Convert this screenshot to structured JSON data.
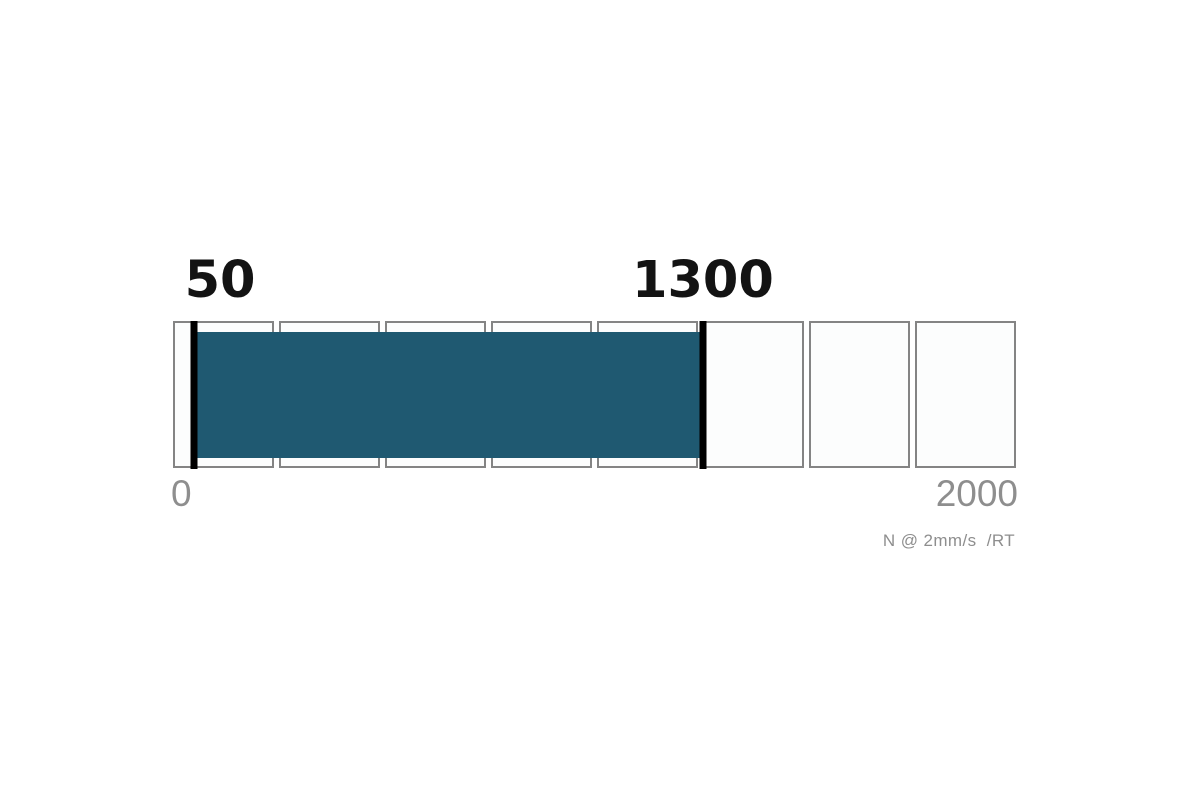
{
  "chart_data": {
    "type": "bar",
    "variant": "horizontal-segmented-range-gauge",
    "orientation": "horizontal",
    "scale": {
      "min": 0,
      "max": 2000,
      "segments": 8,
      "segment_size": 250
    },
    "range": {
      "start": 50,
      "end": 1300
    },
    "range_labels": {
      "start": "50",
      "end": "1300"
    },
    "axis_tick_labels": {
      "min": "0",
      "max": "2000"
    },
    "unit_note": "N @ 2mm/s  /RT",
    "layout_hints": {
      "grid": "segmented-boxes",
      "legend": "none",
      "value_labels_position": "above-markers",
      "axis_labels_position": "below-track-ends"
    },
    "colors": {
      "fill": "#1f5971",
      "marker": "#000000",
      "segment_border": "#848484",
      "segment_background": "#fcfdfd",
      "label_primary": "#131313",
      "label_secondary": "#8e8e8e",
      "page_background": "#ffffff"
    }
  }
}
